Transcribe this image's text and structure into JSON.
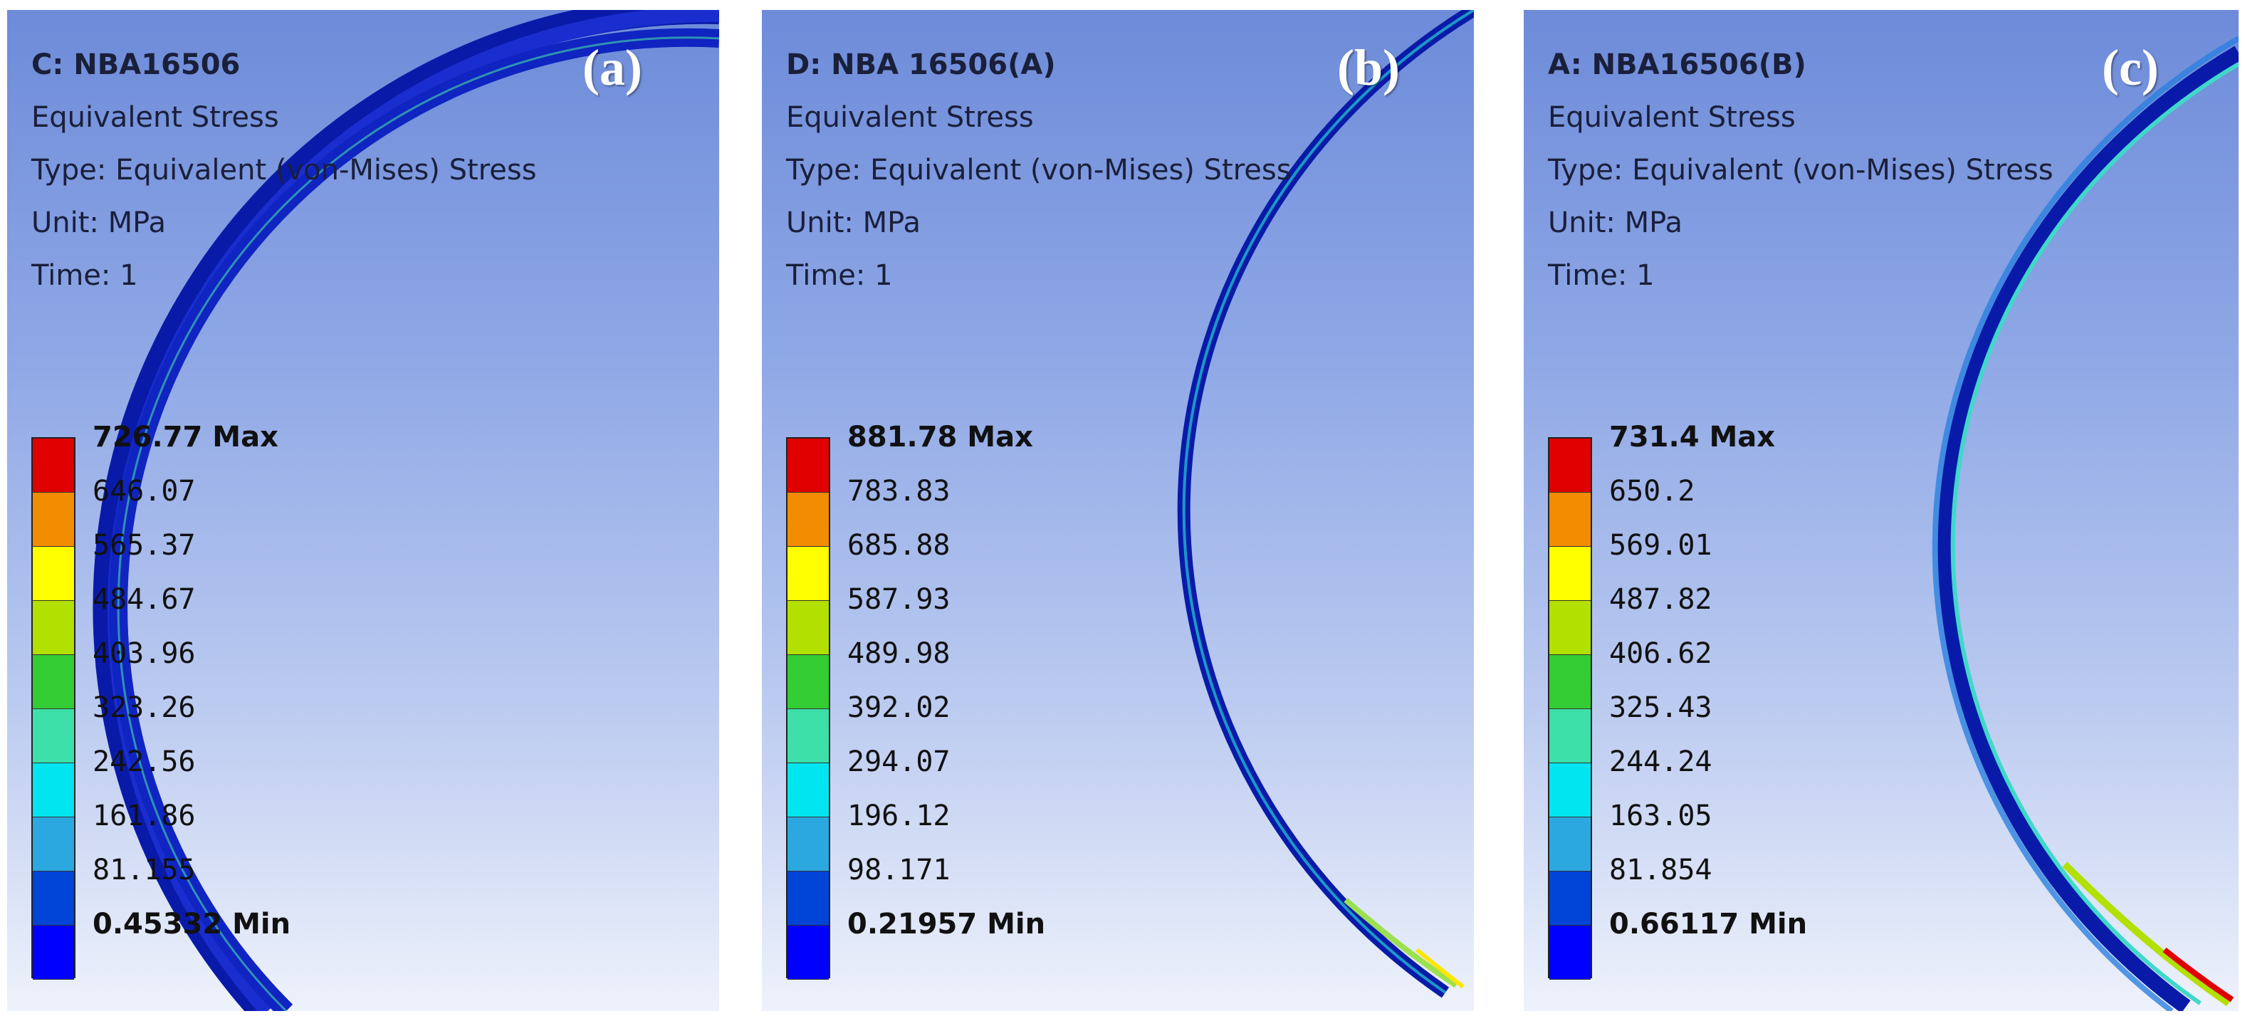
{
  "colors": [
    "#e00000",
    "#f28c00",
    "#ffff00",
    "#b2e000",
    "#33cc33",
    "#3de0a8",
    "#00e5f0",
    "#2ca8e0",
    "#0044d8",
    "#0000ff"
  ],
  "panels": [
    {
      "label": "(a)",
      "title": "C: NBA16506",
      "result": "Equivalent Stress",
      "type": "Type: Equivalent (von-Mises) Stress",
      "unit": "Unit: MPa",
      "time": "Time: 1",
      "legend": {
        "max": "726.77 Max",
        "values": [
          "646.07",
          "565.37",
          "484.67",
          "403.96",
          "323.26",
          "242.56",
          "161.86",
          "81.155"
        ],
        "min": "0.45332 Min"
      }
    },
    {
      "label": "(b)",
      "title": "D: NBA 16506(A)",
      "result": "Equivalent Stress",
      "type": "Type: Equivalent (von-Mises) Stress",
      "unit": "Unit: MPa",
      "time": "Time: 1",
      "legend": {
        "max": "881.78 Max",
        "values": [
          "783.83",
          "685.88",
          "587.93",
          "489.98",
          "392.02",
          "294.07",
          "196.12",
          "98.171"
        ],
        "min": "0.21957 Min"
      }
    },
    {
      "label": "(c)",
      "title": "A: NBA16506(B)",
      "result": "Equivalent Stress",
      "type": "Type: Equivalent (von-Mises) Stress",
      "unit": "Unit: MPa",
      "time": "Time: 1",
      "legend": {
        "max": "731.4 Max",
        "values": [
          "650.2",
          "569.01",
          "487.82",
          "406.62",
          "325.43",
          "244.24",
          "163.05",
          "81.854"
        ],
        "min": "0.66117 Min"
      }
    }
  ]
}
